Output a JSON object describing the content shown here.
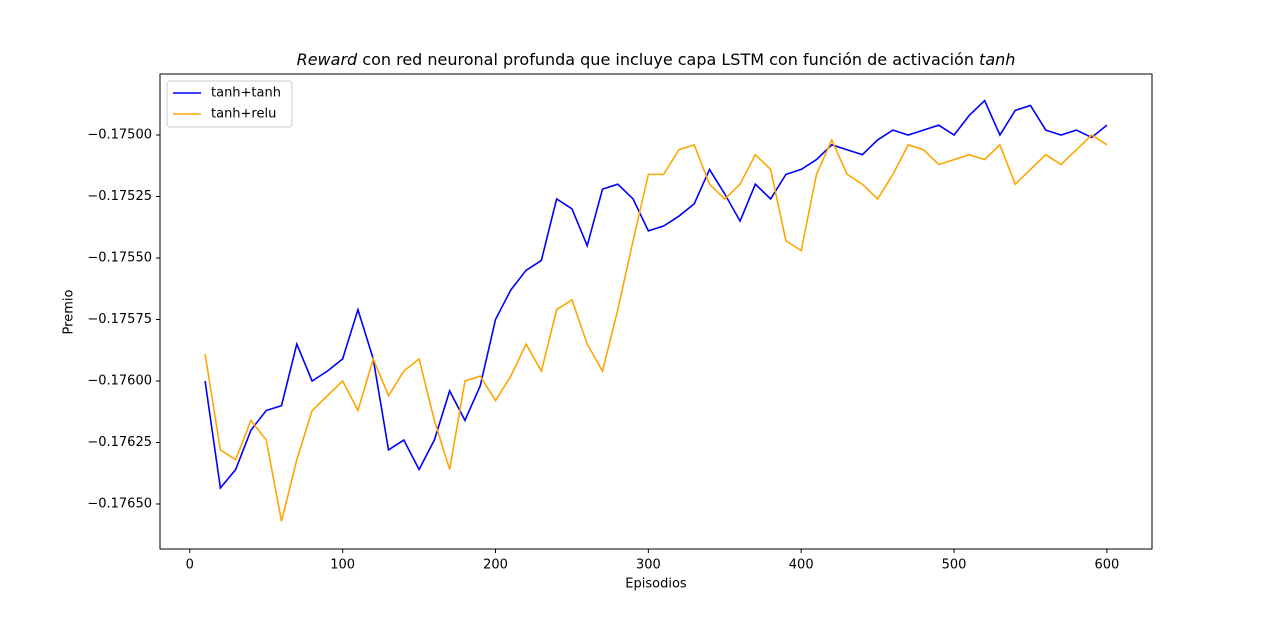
{
  "chart_data": {
    "type": "line",
    "title": [
      "Reward",
      " con red neuronal profunda que incluye capa LSTM con función de activación ",
      "tanh"
    ],
    "title_italic": [
      true,
      false,
      true
    ],
    "x_label": "Episodios",
    "y_label": "Premio",
    "x": [
      10,
      20,
      30,
      40,
      50,
      60,
      70,
      80,
      90,
      100,
      110,
      120,
      130,
      140,
      150,
      160,
      170,
      180,
      190,
      200,
      210,
      220,
      230,
      240,
      250,
      260,
      270,
      280,
      290,
      300,
      310,
      320,
      330,
      340,
      350,
      360,
      370,
      380,
      390,
      400,
      410,
      420,
      430,
      440,
      450,
      460,
      470,
      480,
      490,
      500,
      510,
      520,
      530,
      540,
      550,
      560,
      570,
      580,
      590,
      600
    ],
    "series": [
      {
        "name": "tanh+tanh",
        "color": "#0000ff",
        "values": [
          -0.176,
          -0.176435,
          -0.17636,
          -0.1762,
          -0.17612,
          -0.1761,
          -0.17585,
          -0.176,
          -0.17596,
          -0.17591,
          -0.17571,
          -0.17591,
          -0.17628,
          -0.17624,
          -0.17636,
          -0.17624,
          -0.17604,
          -0.17616,
          -0.17602,
          -0.17575,
          -0.17563,
          -0.17555,
          -0.17551,
          -0.17526,
          -0.1753,
          -0.17545,
          -0.17522,
          -0.1752,
          -0.17526,
          -0.17539,
          -0.17537,
          -0.17533,
          -0.17528,
          -0.17514,
          -0.17524,
          -0.17535,
          -0.1752,
          -0.17526,
          -0.17516,
          -0.17514,
          -0.1751,
          -0.17504,
          -0.17506,
          -0.17508,
          -0.17502,
          -0.17498,
          -0.175,
          -0.17498,
          -0.17496,
          -0.175,
          -0.17492,
          -0.17486,
          -0.175,
          -0.1749,
          -0.17488,
          -0.17498,
          -0.175,
          -0.17498,
          -0.17501,
          -0.17496
        ]
      },
      {
        "name": "tanh+relu",
        "color": "#ffa500",
        "values": [
          -0.17589,
          -0.17628,
          -0.17632,
          -0.17616,
          -0.17624,
          -0.17657,
          -0.17632,
          -0.17612,
          -0.17606,
          -0.176,
          -0.17612,
          -0.17591,
          -0.17606,
          -0.17596,
          -0.17591,
          -0.17616,
          -0.17636,
          -0.176,
          -0.17598,
          -0.17608,
          -0.17598,
          -0.17585,
          -0.17596,
          -0.17571,
          -0.17567,
          -0.17585,
          -0.17596,
          -0.17571,
          -0.17543,
          -0.17516,
          -0.17516,
          -0.17506,
          -0.17504,
          -0.1752,
          -0.17526,
          -0.1752,
          -0.17508,
          -0.17514,
          -0.17543,
          -0.17547,
          -0.17516,
          -0.17502,
          -0.17516,
          -0.1752,
          -0.17526,
          -0.17516,
          -0.17504,
          -0.17506,
          -0.17512,
          -0.1751,
          -0.17508,
          -0.1751,
          -0.17504,
          -0.1752,
          -0.17514,
          -0.17508,
          -0.17512,
          -0.17506,
          -0.175,
          -0.17504
        ]
      }
    ],
    "xlim": [
      -19.5,
      629.5
    ],
    "ylim": [
      -0.176683,
      -0.174752
    ],
    "xticks": [
      0,
      100,
      200,
      300,
      400,
      500,
      600
    ],
    "yticks": [
      {
        "value": -0.1765,
        "label": "−0.17650"
      },
      {
        "value": -0.17625,
        "label": "−0.17625"
      },
      {
        "value": -0.176,
        "label": "−0.17600"
      },
      {
        "value": -0.17575,
        "label": "−0.17575"
      },
      {
        "value": -0.1755,
        "label": "−0.17550"
      },
      {
        "value": -0.17525,
        "label": "−0.17525"
      },
      {
        "value": -0.175,
        "label": "−0.17500"
      }
    ],
    "legend": "upper left",
    "grid": false
  }
}
